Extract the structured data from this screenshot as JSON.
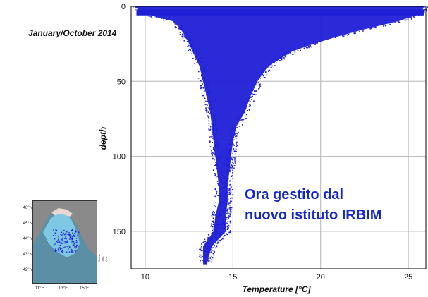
{
  "header": {
    "period": "January/October 2014"
  },
  "overlay_note": {
    "line1": "Ora gestito dal",
    "line2": "nuovo istituto IRBIM"
  },
  "inset_map": {
    "lat_labels": [
      "46°N",
      "45°N",
      "44°N",
      "43°N",
      "42°N"
    ],
    "lon_labels": [
      "11°E",
      "13°E",
      "15°E"
    ],
    "credit": "Ocean Data View",
    "colors": {
      "sea_shallow": "#7ec8e3",
      "land": "#8a8a8a",
      "stations": "#1f1fd6"
    }
  },
  "chart_data": {
    "type": "scatter",
    "xlabel": "Temperature [°C]",
    "ylabel": "depth",
    "xlim": [
      9.2,
      26
    ],
    "ylim": [
      175,
      0
    ],
    "y_inverted": true,
    "x_ticks": [
      10,
      15,
      20,
      25
    ],
    "y_ticks": [
      0,
      50,
      100,
      150
    ],
    "grid": true,
    "point_color": "#1f1fd6",
    "envelope": {
      "depth": [
        0,
        5,
        10,
        15,
        20,
        25,
        30,
        40,
        50,
        60,
        70,
        80,
        90,
        100,
        110,
        120,
        130,
        140,
        150,
        160,
        172
      ],
      "t_min": [
        9.4,
        10.0,
        11.6,
        12.0,
        12.3,
        12.5,
        12.7,
        13.1,
        13.3,
        13.5,
        13.7,
        13.8,
        13.9,
        14.0,
        14.1,
        14.2,
        14.2,
        14.0,
        13.9,
        13.3,
        13.3
      ],
      "t_max": [
        25.9,
        25.7,
        24.4,
        22.6,
        21.0,
        19.6,
        18.4,
        17.0,
        16.4,
        16.0,
        15.7,
        15.2,
        15.0,
        14.9,
        14.8,
        14.7,
        14.7,
        14.6,
        14.6,
        13.8,
        13.5
      ]
    },
    "surface_band": {
      "depth_range": [
        2,
        6
      ],
      "t_range": [
        9.5,
        25.9
      ]
    }
  }
}
